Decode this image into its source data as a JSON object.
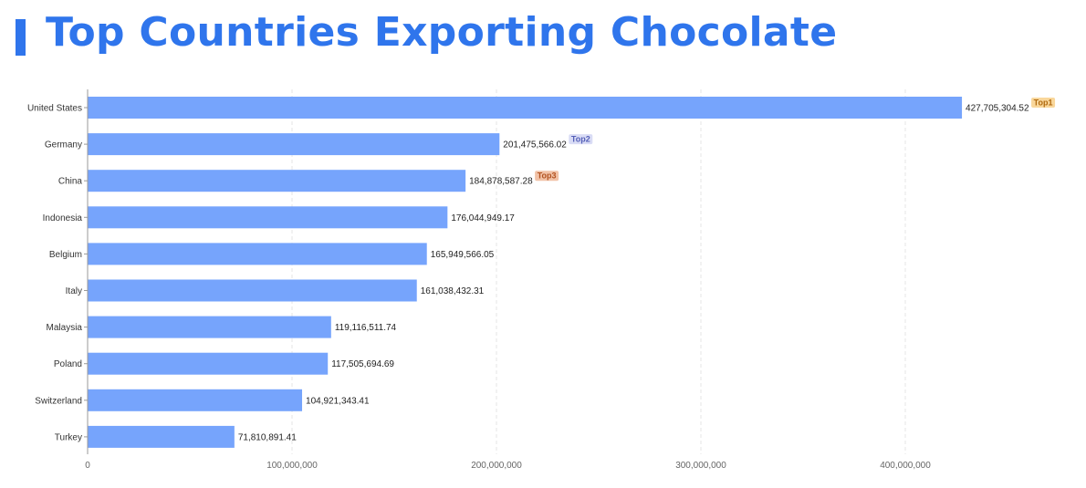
{
  "title": "Top Countries Exporting Chocolate",
  "colors": {
    "accent": "#2f75ec",
    "bar": "#76a4fc",
    "grid": "#e6e6e6",
    "axis": "#999999"
  },
  "chart_data": {
    "type": "bar",
    "orientation": "horizontal",
    "categories": [
      "United States",
      "Germany",
      "China",
      "Indonesia",
      "Belgium",
      "Italy",
      "Malaysia",
      "Poland",
      "Switzerland",
      "Turkey"
    ],
    "values": [
      427705304.52,
      201475566.02,
      184878587.28,
      176044949.17,
      165949566.05,
      161038432.31,
      119116511.74,
      117505694.69,
      104921343.41,
      71810891.41
    ],
    "value_labels": [
      "427,705,304.52",
      "201,475,566.02",
      "184,878,587.28",
      "176,044,949.17",
      "165,949,566.05",
      "161,038,432.31",
      "119,116,511.74",
      "117,505,694.69",
      "104,921,343.41",
      "71,810,891.41"
    ],
    "xlim": [
      0,
      450000000
    ],
    "xticks": [
      0,
      100000000,
      200000000,
      300000000,
      400000000
    ],
    "xtick_labels": [
      "0",
      "100,000,000",
      "200,000,000",
      "300,000,000",
      "400,000,000"
    ],
    "grid": true,
    "badges": [
      {
        "label": "Top1",
        "index": 0,
        "bg": "#f9d79b",
        "fg": "#b06a10"
      },
      {
        "label": "Top2",
        "index": 1,
        "bg": "#d9dcf5",
        "fg": "#5560b8"
      },
      {
        "label": "Top3",
        "index": 2,
        "bg": "#f1c2a7",
        "fg": "#b2511f"
      }
    ]
  }
}
